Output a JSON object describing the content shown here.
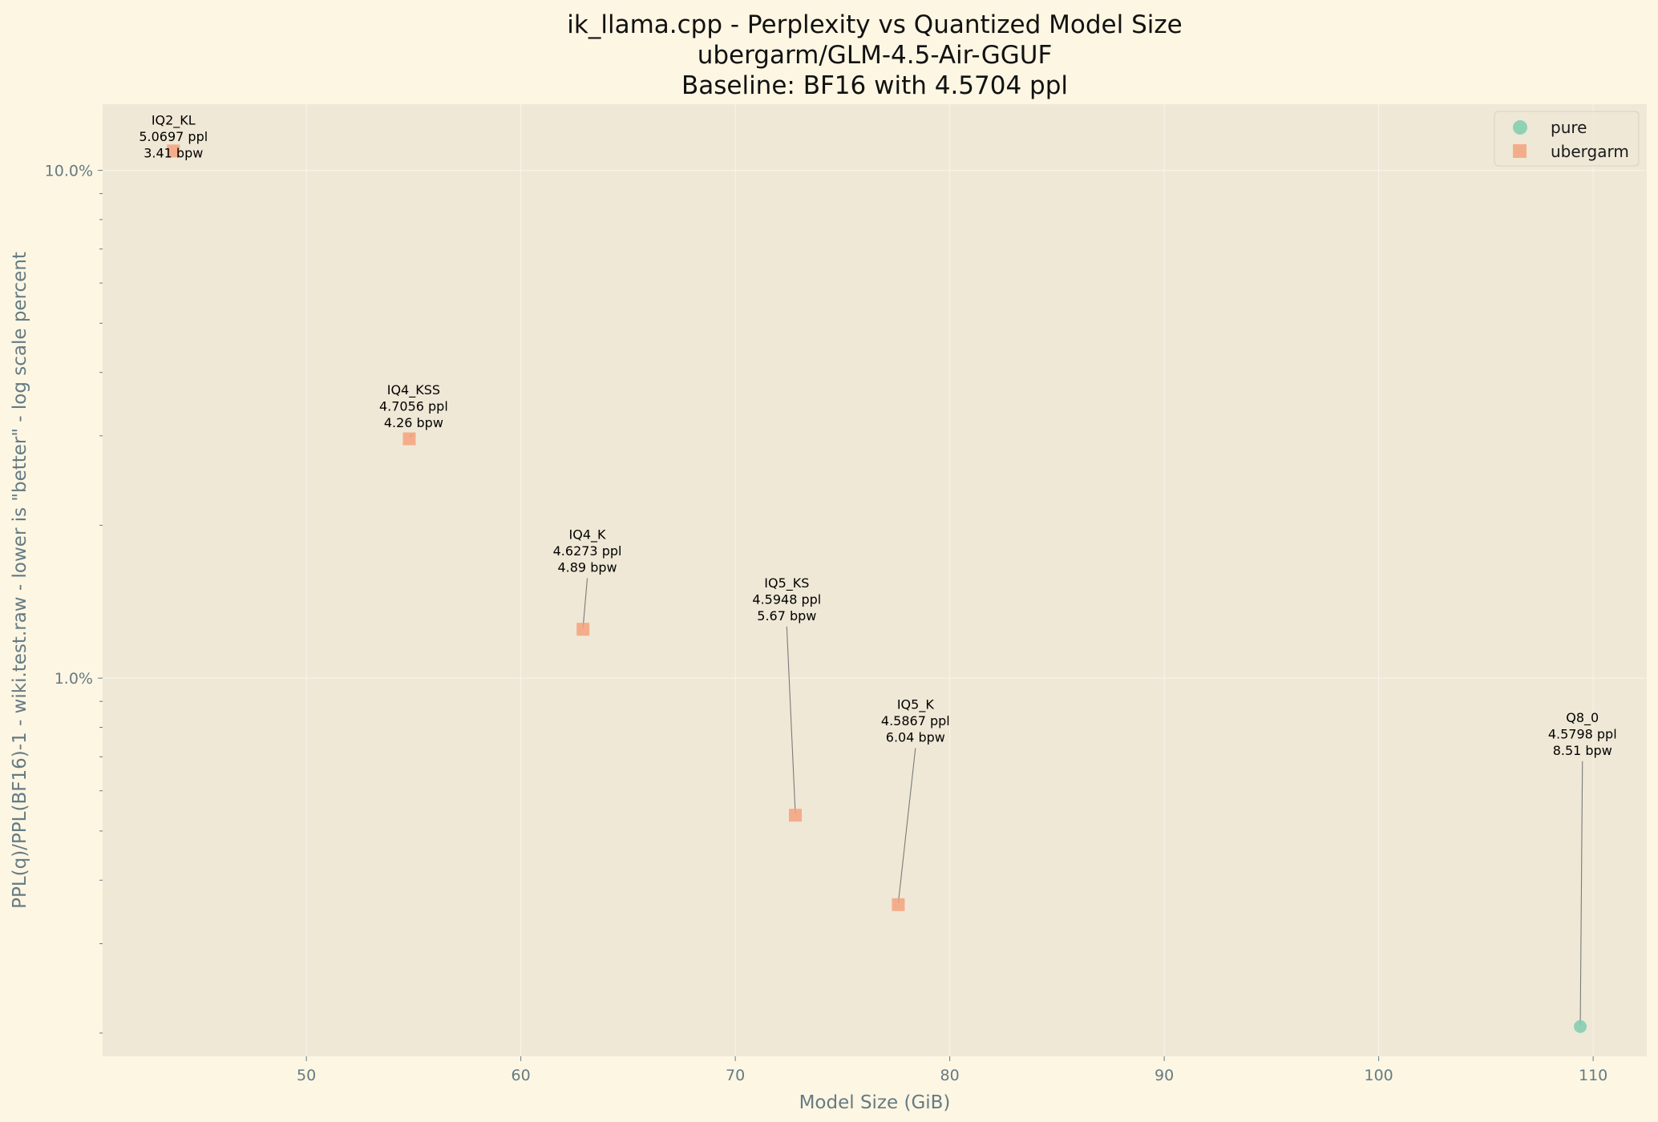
{
  "chart_data": {
    "type": "scatter",
    "title_lines": [
      "ik_llama.cpp - Perplexity vs Quantized Model Size",
      "ubergarm/GLM-4.5-Air-GGUF",
      "Baseline: BF16 with 4.5704 ppl"
    ],
    "xlabel": "Model Size (GiB)",
    "ylabel": "PPL(q)/PPL(BF16)-1 - wiki.test.raw - lower is \"better\" - log scale percent",
    "xlim": [
      40.5,
      112.5
    ],
    "ylim": [
      0.18,
      13.5
    ],
    "yscale": "log",
    "x_ticks": [
      50,
      60,
      70,
      80,
      90,
      100,
      110
    ],
    "x_tick_labels": [
      "50",
      "60",
      "70",
      "80",
      "90",
      "100",
      "110"
    ],
    "y_ticks": [
      1.0,
      10.0
    ],
    "y_tick_labels": [
      "1.0%",
      "10.0%"
    ],
    "grid": true,
    "legend_position": "top-right",
    "colors": {
      "pure": "#7fcdb0",
      "ubergarm": "#f4a27e",
      "plot_bg": "#efe8d6",
      "figure_bg": "#fdf6e3",
      "tick": "#657b83"
    },
    "series": [
      {
        "name": "pure",
        "marker": "circle",
        "points": [
          {
            "x": 109.4,
            "y": 0.206,
            "label": [
              "Q8_0",
              "4.5798 ppl",
              "8.51 bpw"
            ],
            "label_at": {
              "x": 109.5,
              "y": 0.82
            }
          }
        ]
      },
      {
        "name": "ubergarm",
        "marker": "square",
        "points": [
          {
            "x": 43.8,
            "y": 10.92,
            "label": [
              "IQ2_KL",
              "5.0697 ppl",
              "3.41 bpw"
            ],
            "label_at": {
              "x": 43.8,
              "y": 12.3
            }
          },
          {
            "x": 54.8,
            "y": 2.96,
            "label": [
              "IQ4_KSS",
              "4.7056 ppl",
              "4.26 bpw"
            ],
            "label_at": {
              "x": 55.0,
              "y": 3.62
            }
          },
          {
            "x": 62.9,
            "y": 1.248,
            "label": [
              "IQ4_K",
              "4.6273 ppl",
              "4.89 bpw"
            ],
            "label_at": {
              "x": 63.1,
              "y": 1.88
            }
          },
          {
            "x": 72.8,
            "y": 0.537,
            "label": [
              "IQ5_KS",
              "4.5948 ppl",
              "5.67 bpw"
            ],
            "label_at": {
              "x": 72.4,
              "y": 1.51
            }
          },
          {
            "x": 77.6,
            "y": 0.358,
            "label": [
              "IQ5_K",
              "4.5867 ppl",
              "6.04 bpw"
            ],
            "label_at": {
              "x": 78.4,
              "y": 0.87
            }
          }
        ]
      }
    ]
  }
}
